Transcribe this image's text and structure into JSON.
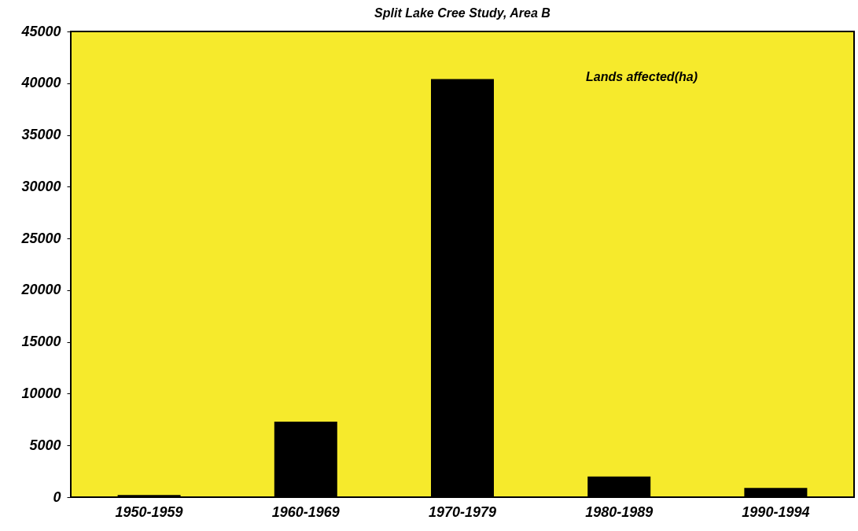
{
  "chart_data": {
    "type": "bar",
    "title": "Split Lake Cree Study, Area B",
    "categories": [
      "1950-1959",
      "1960-1969",
      "1970-1979",
      "1980-1989",
      "1990-1994"
    ],
    "series": [
      {
        "color": "#000000",
        "values": [
          200,
          7300,
          40400,
          2000,
          900
        ]
      }
    ],
    "ylim": [
      0,
      45000
    ],
    "yticks": [
      0,
      5000,
      10000,
      15000,
      20000,
      25000,
      30000,
      35000,
      40000,
      45000
    ],
    "annotations": [
      "Lands affected(ha)"
    ],
    "grid": false
  }
}
